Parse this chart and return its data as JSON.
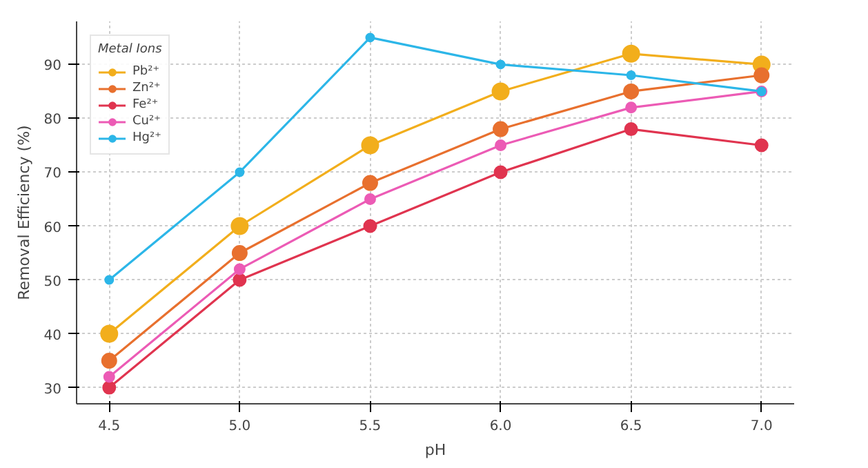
{
  "chart_data": {
    "type": "line",
    "xlabel": "pH",
    "ylabel": "Removal Efficiency (%)",
    "legend_title": "Metal Ions",
    "x": [
      4.5,
      5.0,
      5.5,
      6.0,
      6.5,
      7.0
    ],
    "series": [
      {
        "name": "Pb²⁺",
        "color": "#f2ae1c",
        "values": [
          40,
          60,
          75,
          85,
          92,
          90
        ]
      },
      {
        "name": "Zn²⁺",
        "color": "#e8702e",
        "values": [
          35,
          55,
          68,
          78,
          85,
          88
        ]
      },
      {
        "name": "Fe²⁺",
        "color": "#e0344f",
        "values": [
          30,
          50,
          60,
          70,
          78,
          75
        ]
      },
      {
        "name": "Cu²⁺",
        "color": "#ec5bb5",
        "values": [
          32,
          52,
          65,
          75,
          82,
          85
        ]
      },
      {
        "name": "Hg²⁺",
        "color": "#2cb6e8",
        "values": [
          50,
          70,
          95,
          90,
          88,
          85
        ]
      }
    ],
    "xlim": [
      4.375,
      7.125
    ],
    "ylim": [
      27,
      98
    ],
    "xticks": [
      {
        "value": 4.5,
        "label": "4.5"
      },
      {
        "value": 5.0,
        "label": "5.0"
      },
      {
        "value": 5.5,
        "label": "5.5"
      },
      {
        "value": 6.0,
        "label": "6.0"
      },
      {
        "value": 6.5,
        "label": "6.5"
      },
      {
        "value": 7.0,
        "label": "7.0"
      }
    ],
    "yticks": [
      30,
      40,
      50,
      60,
      70,
      80,
      90
    ],
    "grid": true,
    "legend": "top left",
    "marker": "circle",
    "line_style": "solid"
  }
}
